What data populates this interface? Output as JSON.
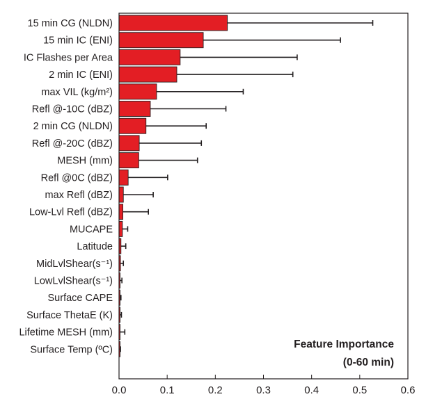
{
  "chart_data": {
    "type": "bar",
    "orientation": "horizontal",
    "categories": [
      "15 min CG (NLDN)",
      "15 min IC (ENI)",
      "IC Flashes per Area",
      "2 min IC (ENI)",
      "max VIL (kg/m²)",
      "Refl @-10C (dBZ)",
      "2 min CG (NLDN)",
      "Refl @-20C (dBZ)",
      "MESH (mm)",
      "Refl @0C (dBZ)",
      "max Refl (dBZ)",
      "Low-Lvl Refl (dBZ)",
      "MUCAPE",
      "Latitude",
      "MidLvlShear(s⁻¹)",
      "LowLvlShear(s⁻¹)",
      "Surface CAPE",
      "Surface ThetaE (K)",
      "Lifetime MESH (mm)",
      "Surface Temp (ºC)"
    ],
    "values": [
      0.225,
      0.175,
      0.127,
      0.12,
      0.078,
      0.065,
      0.056,
      0.042,
      0.041,
      0.019,
      0.009,
      0.008,
      0.007,
      0.004,
      0.003,
      0.002,
      0.002,
      0.002,
      0.002,
      0.001
    ],
    "errors": [
      0.302,
      0.285,
      0.243,
      0.241,
      0.18,
      0.157,
      0.125,
      0.129,
      0.122,
      0.082,
      0.062,
      0.053,
      0.011,
      0.01,
      0.006,
      0.004,
      0.002,
      0.003,
      0.01,
      0.002
    ],
    "xlim": [
      0,
      0.6
    ],
    "xticks": [
      "0.0",
      "0.1",
      "0.2",
      "0.3",
      "0.4",
      "0.5",
      "0.6"
    ],
    "bar_color": "#e31e24",
    "annotation": [
      "Feature Importance",
      "(0-60 min)"
    ],
    "title": "",
    "xlabel": "",
    "ylabel": ""
  }
}
